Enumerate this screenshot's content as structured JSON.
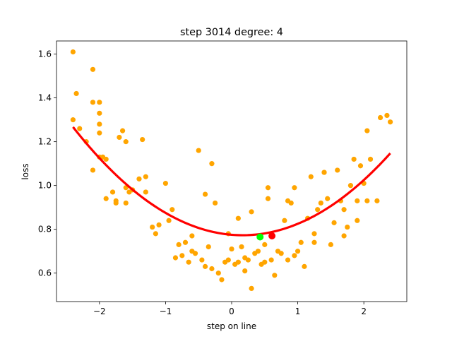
{
  "chart_data": {
    "type": "scatter",
    "title": "step 3014   degree: 4",
    "xlabel": "step on line",
    "ylabel": "loss",
    "xlim": [
      -2.65,
      2.65
    ],
    "ylim": [
      0.47,
      1.66
    ],
    "xticks": [
      -2,
      -1,
      0,
      1,
      2
    ],
    "yticks": [
      0.6,
      0.8,
      1.0,
      1.2,
      1.4,
      1.6
    ],
    "xtick_labels": [
      "−2",
      "−1",
      "0",
      "1",
      "2"
    ],
    "ytick_labels": [
      "0.6",
      "0.8",
      "1.0",
      "1.2",
      "1.4",
      "1.6"
    ],
    "grid": false,
    "colors": {
      "points": "#ffa500",
      "curve": "#ff0000",
      "min_marker": "#00ff00",
      "current_marker": "#ff0000"
    },
    "scatter_points": [
      [
        -2.4,
        1.61
      ],
      [
        -2.35,
        1.42
      ],
      [
        -2.3,
        1.26
      ],
      [
        -2.4,
        1.3
      ],
      [
        -2.2,
        1.2
      ],
      [
        -2.1,
        1.53
      ],
      [
        -2.1,
        1.38
      ],
      [
        -2.0,
        1.38
      ],
      [
        -2.0,
        1.33
      ],
      [
        -2.0,
        1.28
      ],
      [
        -2.0,
        1.24
      ],
      [
        -2.1,
        1.07
      ],
      [
        -2.0,
        1.13
      ],
      [
        -1.95,
        1.13
      ],
      [
        -1.9,
        1.12
      ],
      [
        -1.9,
        0.94
      ],
      [
        -1.8,
        0.97
      ],
      [
        -1.75,
        0.92
      ],
      [
        -1.75,
        0.93
      ],
      [
        -1.7,
        1.22
      ],
      [
        -1.65,
        1.25
      ],
      [
        -1.6,
        1.2
      ],
      [
        -1.6,
        0.99
      ],
      [
        -1.55,
        0.97
      ],
      [
        -1.6,
        0.92
      ],
      [
        -1.5,
        0.98
      ],
      [
        -1.4,
        1.03
      ],
      [
        -1.35,
        1.21
      ],
      [
        -1.3,
        1.04
      ],
      [
        -1.3,
        0.97
      ],
      [
        -1.2,
        0.81
      ],
      [
        -1.15,
        0.78
      ],
      [
        -1.1,
        0.82
      ],
      [
        -1.0,
        1.01
      ],
      [
        -0.95,
        0.84
      ],
      [
        -0.9,
        0.89
      ],
      [
        -0.8,
        0.73
      ],
      [
        -0.75,
        0.68
      ],
      [
        -0.7,
        0.74
      ],
      [
        -0.65,
        0.65
      ],
      [
        -0.6,
        0.77
      ],
      [
        -0.55,
        0.69
      ],
      [
        -0.5,
        1.16
      ],
      [
        -0.45,
        0.66
      ],
      [
        -0.4,
        0.63
      ],
      [
        -0.3,
        0.62
      ],
      [
        -0.3,
        1.1
      ],
      [
        -0.2,
        0.6
      ],
      [
        -0.15,
        0.57
      ],
      [
        -0.1,
        0.65
      ],
      [
        -0.05,
        0.78
      ],
      [
        0.0,
        0.71
      ],
      [
        0.05,
        0.64
      ],
      [
        0.1,
        0.65
      ],
      [
        0.15,
        0.72
      ],
      [
        0.2,
        0.67
      ],
      [
        0.25,
        0.66
      ],
      [
        0.3,
        0.53
      ],
      [
        0.35,
        0.69
      ],
      [
        0.4,
        0.7
      ],
      [
        0.45,
        0.64
      ],
      [
        0.5,
        0.65
      ],
      [
        0.55,
        0.94
      ],
      [
        0.6,
        0.66
      ],
      [
        0.65,
        0.59
      ],
      [
        0.7,
        0.7
      ],
      [
        0.75,
        0.69
      ],
      [
        0.8,
        0.84
      ],
      [
        0.85,
        0.93
      ],
      [
        0.9,
        0.92
      ],
      [
        0.95,
        0.68
      ],
      [
        1.0,
        0.7
      ],
      [
        1.05,
        0.74
      ],
      [
        1.1,
        0.63
      ],
      [
        1.15,
        0.85
      ],
      [
        1.2,
        1.04
      ],
      [
        1.25,
        0.78
      ],
      [
        1.3,
        0.89
      ],
      [
        1.35,
        0.92
      ],
      [
        1.4,
        1.06
      ],
      [
        1.45,
        0.94
      ],
      [
        1.5,
        0.73
      ],
      [
        1.55,
        0.83
      ],
      [
        1.6,
        1.07
      ],
      [
        1.65,
        0.93
      ],
      [
        1.7,
        0.89
      ],
      [
        1.75,
        0.81
      ],
      [
        1.8,
        1.0
      ],
      [
        1.85,
        1.12
      ],
      [
        1.9,
        0.84
      ],
      [
        1.95,
        1.09
      ],
      [
        2.0,
        1.01
      ],
      [
        2.05,
        1.25
      ],
      [
        2.1,
        1.12
      ],
      [
        2.2,
        0.93
      ],
      [
        2.25,
        1.31
      ],
      [
        2.35,
        1.32
      ],
      [
        2.4,
        1.29
      ],
      [
        2.05,
        0.93
      ],
      [
        1.9,
        0.93
      ],
      [
        1.7,
        0.77
      ],
      [
        1.4,
        1.06
      ],
      [
        1.25,
        0.74
      ],
      [
        0.85,
        0.66
      ],
      [
        0.5,
        0.73
      ],
      [
        0.2,
        0.61
      ],
      [
        -0.05,
        0.66
      ],
      [
        -0.35,
        0.72
      ],
      [
        -0.6,
        0.7
      ],
      [
        -0.85,
        0.67
      ],
      [
        0.3,
        0.88
      ],
      [
        0.55,
        0.99
      ],
      [
        -0.25,
        0.92
      ],
      [
        -0.4,
        0.96
      ],
      [
        0.1,
        0.85
      ],
      [
        0.95,
        0.99
      ]
    ],
    "curve": {
      "label": "",
      "x_range": [
        -2.4,
        2.4
      ],
      "coefficients_desc": [
        0.0,
        0.0,
        0.075,
        -0.025,
        0.775
      ]
    },
    "markers": [
      {
        "x": 0.43,
        "y": 0.765,
        "color": "#00ff00"
      },
      {
        "x": 0.61,
        "y": 0.77,
        "color": "#ff0000"
      }
    ]
  }
}
